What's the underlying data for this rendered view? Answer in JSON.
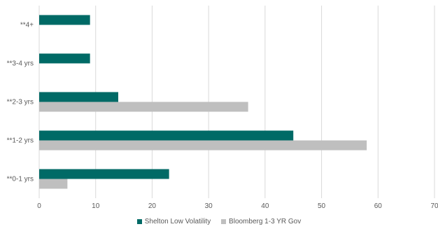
{
  "chart_data": {
    "type": "bar",
    "orientation": "horizontal",
    "categories": [
      "**4+",
      "**3-4 yrs",
      "**2-3 yrs",
      "**1-2 yrs",
      "**0-1 yrs"
    ],
    "series": [
      {
        "name": "Shelton Low Volatility",
        "color": "#006a66",
        "values": [
          9,
          9,
          14,
          45,
          23
        ]
      },
      {
        "name": "Bloomberg 1-3 YR Gov",
        "color": "#bfbfbf",
        "values": [
          0,
          0,
          37,
          58,
          5
        ]
      }
    ],
    "xlim": [
      0,
      70
    ],
    "xticks": [
      0,
      10,
      20,
      30,
      40,
      50,
      60,
      70
    ],
    "grid": true,
    "legend": "bottom"
  }
}
